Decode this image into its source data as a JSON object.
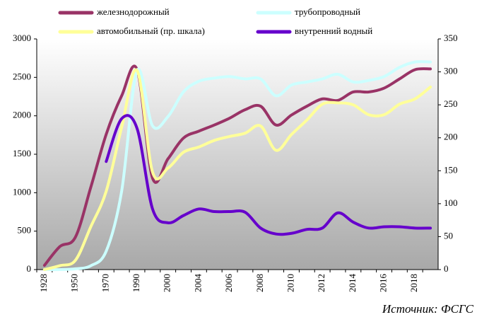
{
  "chart_data": {
    "type": "line",
    "source": "Источник: ФСГС",
    "categories": [
      "1928",
      null,
      "1950",
      null,
      "1970",
      null,
      "1990",
      null,
      "2000",
      null,
      "2004",
      null,
      "2006",
      null,
      "2008",
      null,
      "2010",
      null,
      "2012",
      null,
      "2014",
      null,
      "2016",
      null,
      "2018",
      null
    ],
    "ylim": [
      0,
      3000
    ],
    "yticks": [
      0,
      500,
      1000,
      1500,
      2000,
      2500,
      3000
    ],
    "y2lim": [
      0,
      350
    ],
    "y2ticks": [
      0,
      50,
      100,
      150,
      200,
      250,
      300,
      350
    ],
    "legend": "top",
    "series": [
      {
        "name": "железнодорожный",
        "color": "#993366",
        "values": [
          55,
          300,
          420,
          1070,
          1760,
          2260,
          2600,
          1190,
          1440,
          1710,
          1800,
          1880,
          1970,
          2080,
          2125,
          1880,
          2010,
          2125,
          2220,
          2200,
          2310,
          2310,
          2360,
          2480,
          2600,
          2610
        ]
      },
      {
        "name": "трубопроводный",
        "color": "#ccffff",
        "values": [
          0,
          0,
          10,
          50,
          240,
          1020,
          2590,
          1870,
          1990,
          2310,
          2450,
          2490,
          2510,
          2480,
          2480,
          2260,
          2400,
          2440,
          2480,
          2540,
          2440,
          2460,
          2510,
          2630,
          2700,
          2700
        ]
      },
      {
        "name": "автомобильный (пр. шкала)",
        "color": "#ffff99",
        "axis": "y2",
        "values": [
          0,
          6,
          14,
          65,
          119,
          216,
          302,
          148,
          154,
          178,
          186,
          196,
          202,
          207,
          218,
          181,
          205,
          227,
          251,
          253,
          250,
          235,
          235,
          251,
          259,
          277
        ]
      },
      {
        "name": "внутренний водный",
        "color": "#6600cc",
        "axis": "y2",
        "values": [
          null,
          null,
          null,
          null,
          164,
          229,
          214,
          92,
          71,
          82,
          92,
          88,
          88,
          87,
          63,
          54,
          55,
          61,
          63,
          86,
          72,
          63,
          65,
          65,
          63,
          63
        ]
      }
    ]
  }
}
